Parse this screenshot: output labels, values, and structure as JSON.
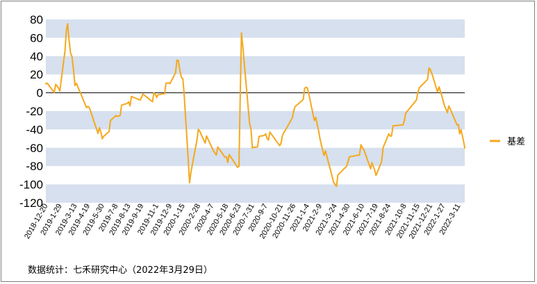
{
  "chart_data": {
    "type": "line",
    "title": "",
    "xlabel": "",
    "ylabel": "",
    "ylim": [
      -120,
      80
    ],
    "yticks": [
      80,
      60,
      40,
      20,
      0,
      -20,
      -40,
      -60,
      -80,
      -100,
      -120
    ],
    "grid": "horizontal bands",
    "legend_position": "right",
    "x_tick_labels": [
      "2018-12-20",
      "2019-1-29",
      "2019-3-13",
      "2019-4-19",
      "2019-5-30",
      "2019-7-8",
      "2019-8-13",
      "2019-9-19",
      "2019-11-1",
      "2019-12-9",
      "2020-1-15",
      "2020-2-28",
      "2020-4-7",
      "2020-5-18",
      "2020-6-23",
      "2020-7-31",
      "2020-9-7",
      "2020-10-21",
      "2020-11-26",
      "2021-1-4",
      "2021-2-9",
      "2021-3-24",
      "2021-4-30",
      "2021-6-10",
      "2021-7-19",
      "2021-8-24",
      "2021-10-8",
      "2021-11-15",
      "2021-12-21",
      "2022-1-27",
      "2022-3-11"
    ],
    "series": [
      {
        "name": "基差",
        "color": "#f5a81c",
        "x": [
          "2018-12-20",
          "2019-1-29",
          "2019-2-20",
          "2019-3-13",
          "2019-4-19",
          "2019-5-30",
          "2019-7-8",
          "2019-8-13",
          "2019-9-19",
          "2019-11-1",
          "2019-12-9",
          "2020-1-2",
          "2020-1-15",
          "2020-2-3",
          "2020-2-28",
          "2020-4-7",
          "2020-5-18",
          "2020-6-23",
          "2020-6-30",
          "2020-7-31",
          "2020-9-7",
          "2020-10-21",
          "2020-11-26",
          "2021-1-4",
          "2021-2-9",
          "2021-3-24",
          "2021-4-30",
          "2021-6-10",
          "2021-7-19",
          "2021-8-24",
          "2021-10-8",
          "2021-11-15",
          "2021-12-21",
          "2022-1-27",
          "2022-3-11",
          "2022-3-29"
        ],
        "values": [
          10,
          2,
          75,
          8,
          -15,
          -50,
          -25,
          -10,
          -5,
          -5,
          10,
          35,
          15,
          -98,
          -40,
          -60,
          -70,
          -80,
          65,
          -60,
          -45,
          -55,
          -20,
          5,
          -50,
          -100,
          -75,
          -60,
          -90,
          -45,
          -30,
          0,
          25,
          -10,
          -35,
          -60
        ]
      }
    ]
  },
  "legend": {
    "label": "基差"
  },
  "footer": {
    "source_note": "数据统计：七禾研究中心（2022年3月29日）"
  }
}
